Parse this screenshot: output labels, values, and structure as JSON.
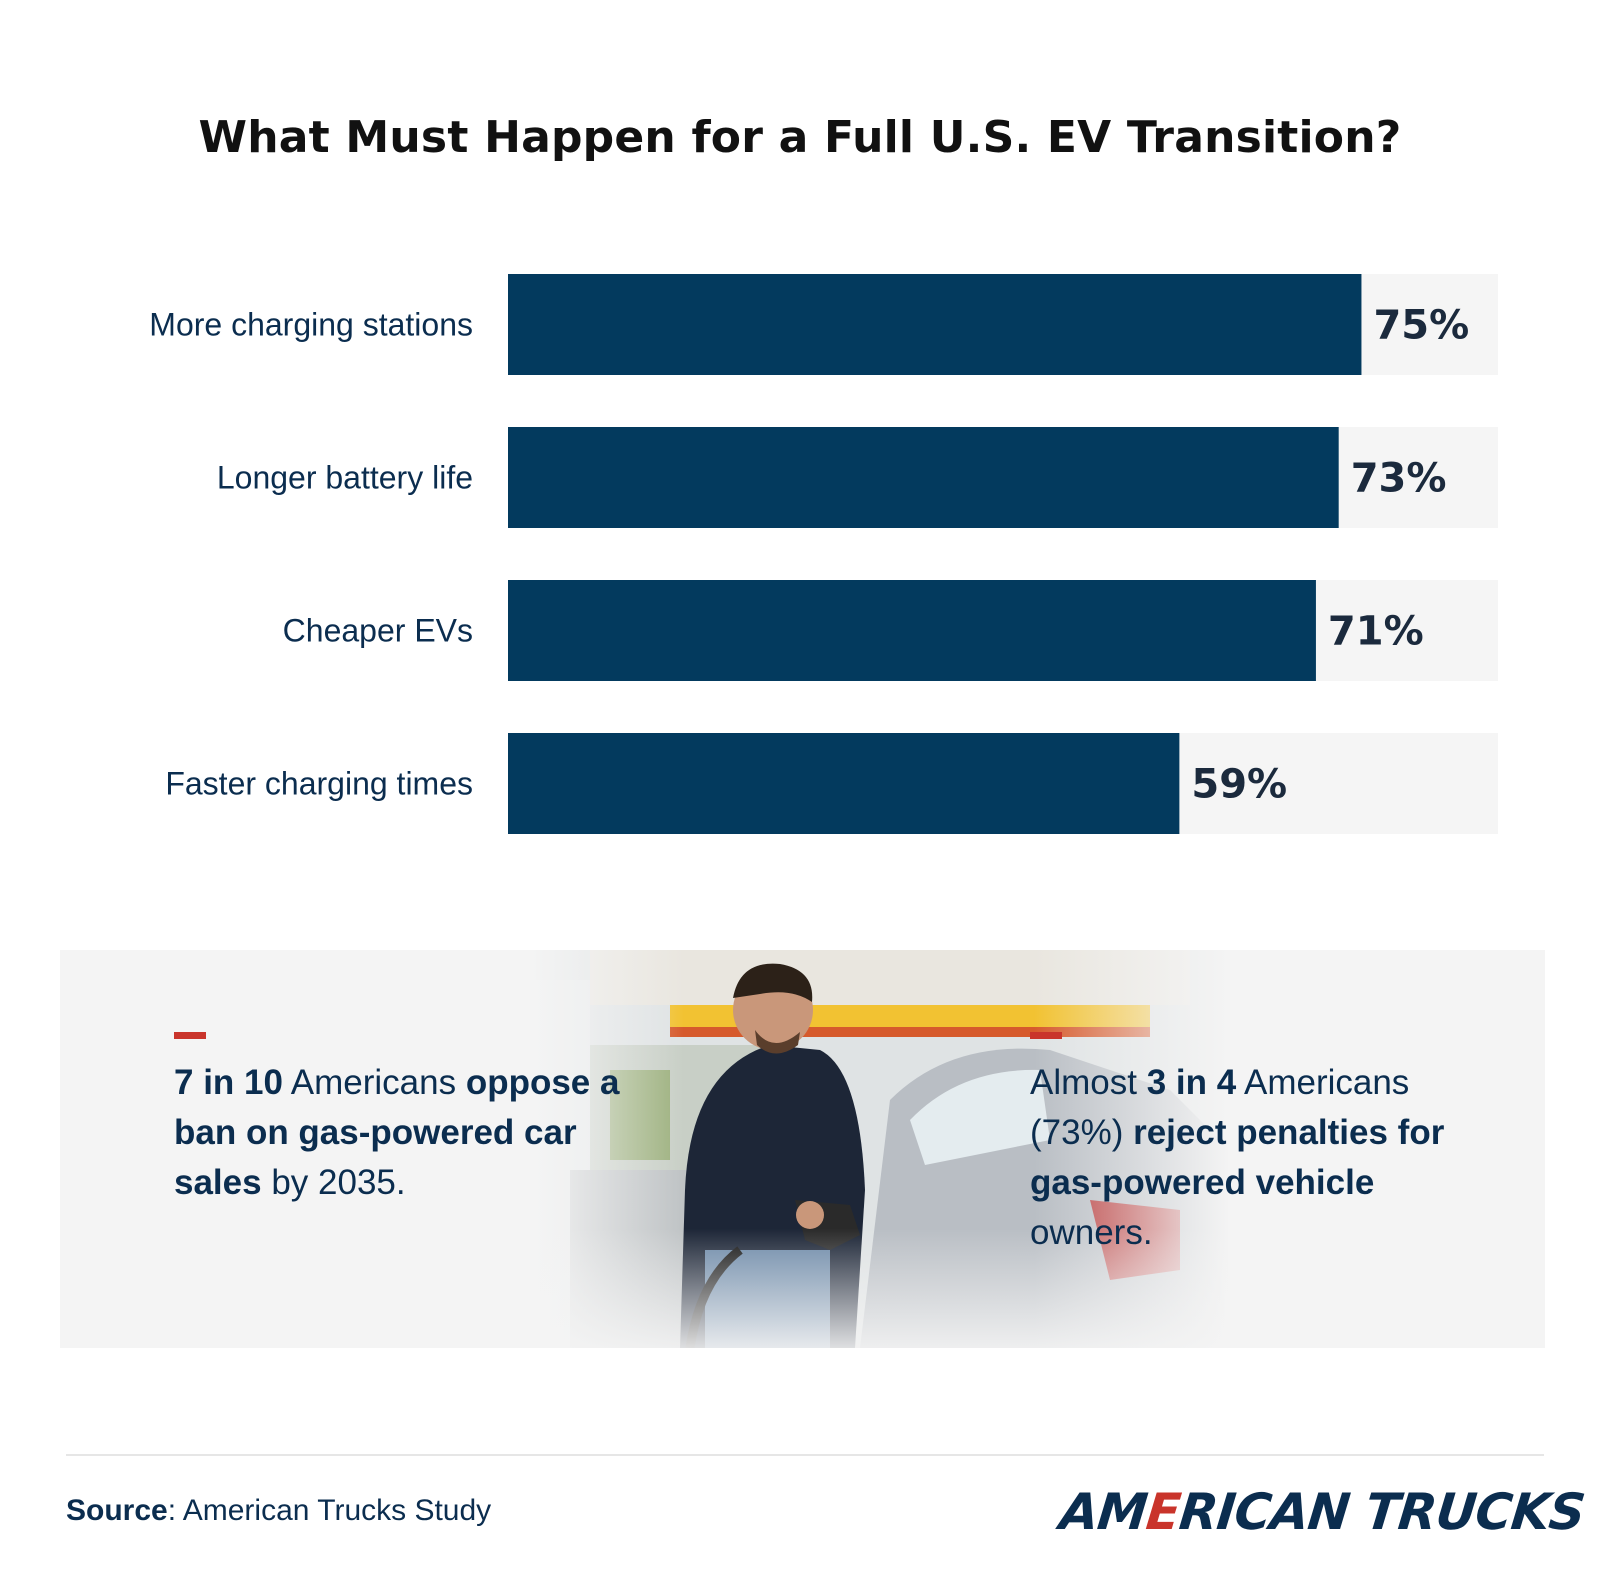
{
  "title": "What Must Happen for a Full U.S. EV Transition?",
  "colors": {
    "bar": "#033a5e",
    "track": "#f5f5f5",
    "accent": "#c9342b",
    "text": "#0b2d4f"
  },
  "chart_data": {
    "type": "bar",
    "orientation": "horizontal",
    "title": "What Must Happen for a Full U.S. EV Transition?",
    "categories": [
      "More charging stations",
      "Longer battery life",
      "Cheaper EVs",
      "Faster charging times"
    ],
    "values": [
      75,
      73,
      71,
      59
    ],
    "value_labels": [
      "75%",
      "73%",
      "71%",
      "59%"
    ],
    "unit": "%",
    "xlim": [
      0,
      87
    ],
    "grid": false,
    "legend": "none"
  },
  "stats": {
    "left": {
      "p1": "7 in 10",
      "p2": " Americans ",
      "p3": "oppose a ban on gas-powered car sales",
      "p4": " by 2035."
    },
    "right": {
      "p1": "Almost ",
      "p2": "3 in 4",
      "p3": " Americans (73%) ",
      "p4": "reject penalties for gas-powered vehicle",
      "p5": " owners."
    },
    "photo": "man-refueling-car-at-gas-station"
  },
  "footer": {
    "source_label": "Source",
    "source_text": ": American Trucks Study",
    "logo_pre": "AM",
    "logo_e": "E",
    "logo_post": "RICAN TRUCKS"
  }
}
